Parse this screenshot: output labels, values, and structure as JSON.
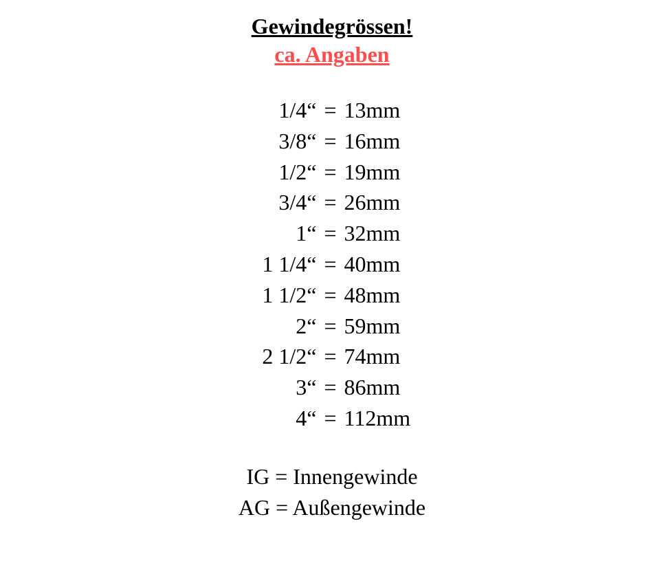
{
  "header": {
    "title": "Gewindegrössen!",
    "subtitle": "ca. Angaben",
    "title_color": "#000000",
    "subtitle_color": "#ff4d4d"
  },
  "sizes": [
    {
      "inch": "1/4“",
      "mm": "13mm"
    },
    {
      "inch": "3/8“",
      "mm": "16mm"
    },
    {
      "inch": "1/2“",
      "mm": "19mm"
    },
    {
      "inch": "3/4“",
      "mm": "26mm"
    },
    {
      "inch": "1“",
      "mm": "32mm"
    },
    {
      "inch": "1 1/4“",
      "mm": "40mm"
    },
    {
      "inch": "1 1/2“",
      "mm": "48mm"
    },
    {
      "inch": "2“",
      "mm": "59mm"
    },
    {
      "inch": "2 1/2“",
      "mm": "74mm"
    },
    {
      "inch": "3“",
      "mm": "86mm"
    },
    {
      "inch": "4“",
      "mm": "112mm"
    }
  ],
  "equals": "=",
  "legend": {
    "ig": "IG = Innengewinde",
    "ag": "AG = Außengewinde"
  },
  "style": {
    "background_color": "#ffffff",
    "text_color": "#000000",
    "font_family": "Georgia, Times New Roman, serif",
    "title_fontsize": 32,
    "body_fontsize": 32,
    "line_height": 1.4
  }
}
